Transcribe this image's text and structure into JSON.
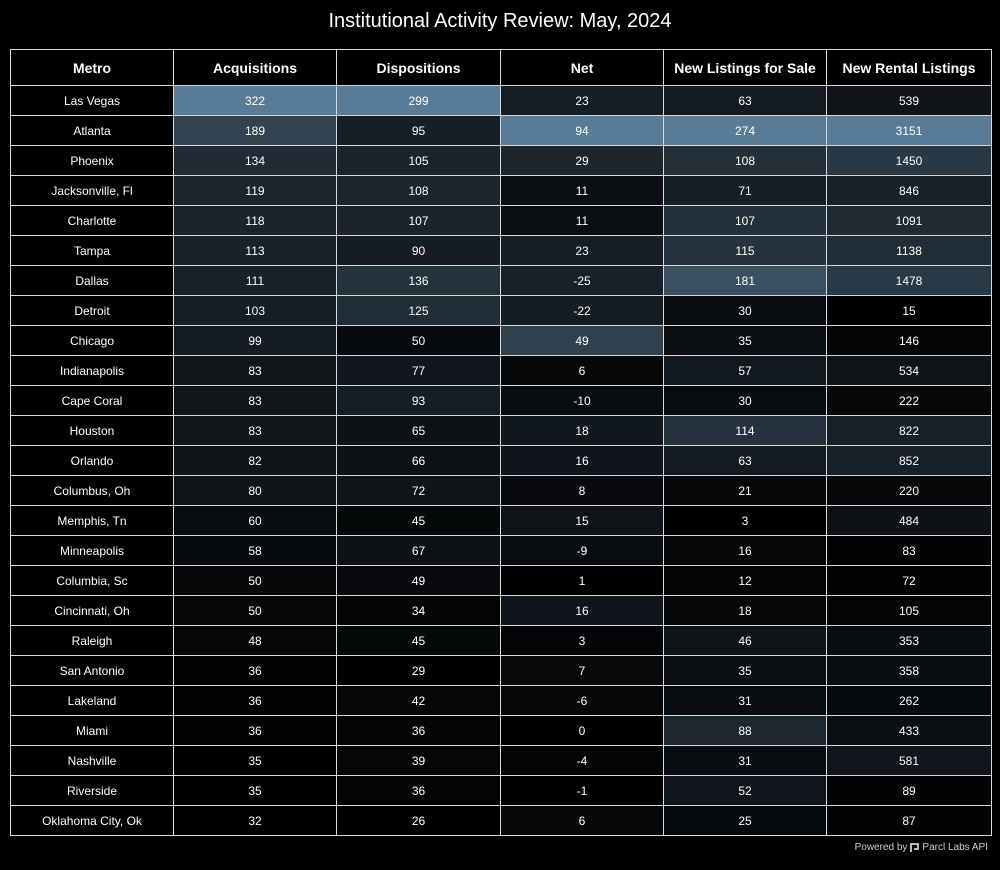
{
  "chart_data": {
    "type": "table",
    "title": "Institutional Activity Review: May, 2024",
    "columns": [
      "Metro",
      "Acquisitions",
      "Dispositions",
      "Net",
      "New Listings for Sale",
      "New Rental Listings"
    ],
    "rows": [
      [
        "Las Vegas",
        322,
        299,
        23,
        63,
        539
      ],
      [
        "Atlanta",
        189,
        95,
        94,
        274,
        3151
      ],
      [
        "Phoenix",
        134,
        105,
        29,
        108,
        1450
      ],
      [
        "Jacksonville, Fl",
        119,
        108,
        11,
        71,
        846
      ],
      [
        "Charlotte",
        118,
        107,
        11,
        107,
        1091
      ],
      [
        "Tampa",
        113,
        90,
        23,
        115,
        1138
      ],
      [
        "Dallas",
        111,
        136,
        -25,
        181,
        1478
      ],
      [
        "Detroit",
        103,
        125,
        -22,
        30,
        15
      ],
      [
        "Chicago",
        99,
        50,
        49,
        35,
        146
      ],
      [
        "Indianapolis",
        83,
        77,
        6,
        57,
        534
      ],
      [
        "Cape Coral",
        83,
        93,
        -10,
        30,
        222
      ],
      [
        "Houston",
        83,
        65,
        18,
        114,
        822
      ],
      [
        "Orlando",
        82,
        66,
        16,
        63,
        852
      ],
      [
        "Columbus, Oh",
        80,
        72,
        8,
        21,
        220
      ],
      [
        "Memphis, Tn",
        60,
        45,
        15,
        3,
        484
      ],
      [
        "Minneapolis",
        58,
        67,
        -9,
        16,
        83
      ],
      [
        "Columbia, Sc",
        50,
        49,
        1,
        12,
        72
      ],
      [
        "Cincinnati, Oh",
        50,
        34,
        16,
        18,
        105
      ],
      [
        "Raleigh",
        48,
        45,
        3,
        46,
        353
      ],
      [
        "San Antonio",
        36,
        29,
        7,
        35,
        358
      ],
      [
        "Lakeland",
        36,
        42,
        -6,
        31,
        262
      ],
      [
        "Miami",
        36,
        36,
        0,
        88,
        433
      ],
      [
        "Nashville",
        35,
        39,
        -4,
        31,
        581
      ],
      [
        "Riverside",
        35,
        36,
        -1,
        52,
        89
      ],
      [
        "Oklahoma City, Ok",
        32,
        26,
        6,
        25,
        87
      ]
    ],
    "heatmap": {
      "low_color": "#000000",
      "high_color": "#5a7b96",
      "net_scale": "absolute"
    }
  },
  "footer": {
    "prefix": "Powered by",
    "brand": "Parcl Labs API",
    "logo_icon": "parcl-logo-icon"
  }
}
